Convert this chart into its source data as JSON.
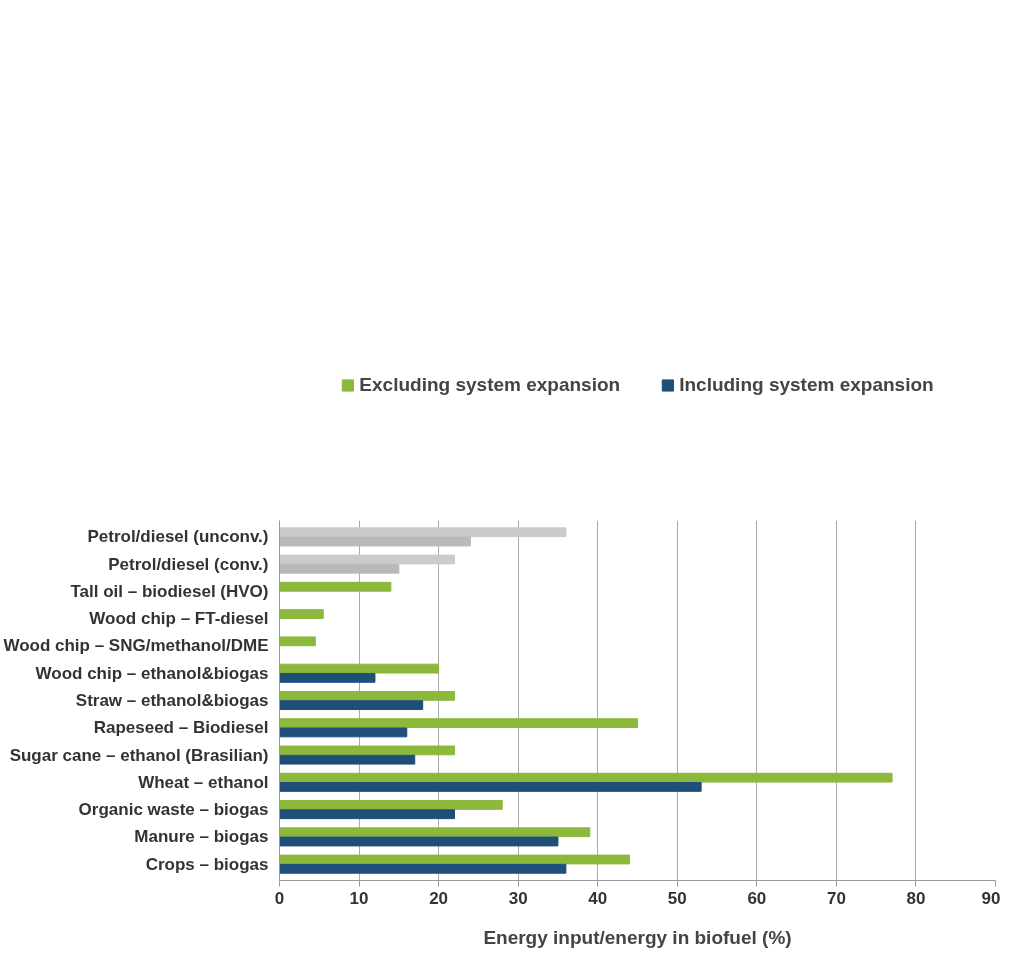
{
  "chart_data": {
    "type": "bar",
    "orientation": "horizontal",
    "xlabel": "Energy input/energy in biofuel (%)",
    "categories": [
      "Petrol/diesel (unconv.)",
      "Petrol/diesel (conv.)",
      "Tall oil – biodiesel (HVO)",
      "Wood chip – FT-diesel",
      "Wood chip – SNG/methanol/DME",
      "Wood chip – ethanol&biogas",
      "Straw – ethanol&biogas",
      "Rapeseed – Biodiesel",
      "Sugar cane – ethanol (Brasilian)",
      "Wheat – ethanol",
      "Organic waste – biogas",
      "Manure – biogas",
      "Crops – biogas"
    ],
    "series": [
      {
        "name": "Excluding system expansion",
        "color": "#8cb83c",
        "colors": [
          "#cbcbcb",
          "#cbcbcb",
          "#8cb83c",
          "#8cb83c",
          "#8cb83c",
          "#8cb83c",
          "#8cb83c",
          "#8cb83c",
          "#8cb83c",
          "#8cb83c",
          "#8cb83c",
          "#8cb83c",
          "#8cb83c"
        ],
        "values": [
          36,
          22,
          14,
          5.5,
          4.5,
          20,
          22,
          45,
          22,
          77,
          28,
          39,
          44
        ]
      },
      {
        "name": "Including system expansion",
        "color": "#1f4e79",
        "colors": [
          "#b9b9b9",
          "#b9b9b9",
          "#1f4e79",
          "#1f4e79",
          "#1f4e79",
          "#1f4e79",
          "#1f4e79",
          "#1f4e79",
          "#1f4e79",
          "#1f4e79",
          "#1f4e79",
          "#1f4e79",
          "#1f4e79"
        ],
        "values": [
          24,
          15,
          null,
          null,
          null,
          12,
          18,
          16,
          17,
          53,
          22,
          35,
          36
        ]
      }
    ],
    "xlim": [
      0,
      90
    ],
    "xticks": [
      0,
      10,
      20,
      30,
      40,
      50,
      60,
      70,
      80,
      90
    ],
    "grid": "x",
    "legend": "top"
  }
}
